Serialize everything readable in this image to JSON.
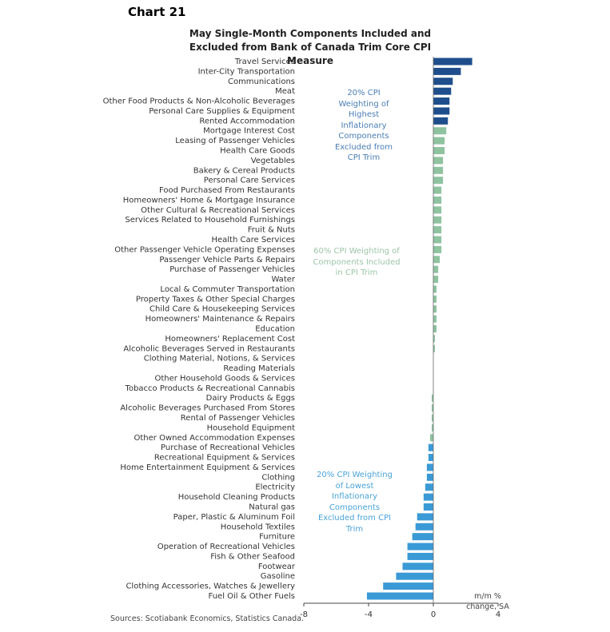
{
  "chart_data": {
    "type": "hbar",
    "label": "Chart 21",
    "title": "May Single-Month Components Included and Excluded from Bank of Canada Trim Core CPI Measure",
    "categories": [
      "Travel Services",
      "Inter-City Transportation",
      "Communications",
      "Meat",
      "Other Food Products & Non-Alcoholic Beverages",
      "Personal Care Supplies & Equipment",
      "Rented Accommodation",
      "Mortgage Interest Cost",
      "Leasing of Passenger Vehicles",
      "Health Care Goods",
      "Vegetables",
      "Bakery & Cereal Products",
      "Personal Care Services",
      "Food Purchased From Restaurants",
      "Homeowners' Home & Mortgage Insurance",
      "Other Cultural & Recreational Services",
      "Services Related to Household Furnishings",
      "Fruit & Nuts",
      "Health Care Services",
      "Other Passenger Vehicle Operating Expenses",
      "Passenger Vehicle Parts & Repairs",
      "Purchase of Passenger Vehicles",
      "Water",
      "Local & Commuter Transportation",
      "Property Taxes & Other Special Charges",
      "Child Care & Housekeeping Services",
      "Homeowners' Maintenance & Repairs",
      "Education",
      "Homeowners' Replacement Cost",
      "Alcoholic Beverages Served in Restaurants",
      "Clothing Material, Notions, & Services",
      "Reading Materials",
      "Other Household Goods & Services",
      "Tobacco Products & Recreational Cannabis",
      "Dairy Products & Eggs",
      "Alcoholic Beverages Purchased From Stores",
      "Rental of Passenger Vehicles",
      "Household Equipment",
      "Other Owned Accommodation Expenses",
      "Purchase of Recreational Vehicles",
      "Recreational Equipment & Services",
      "Home Entertainment Equipment & Services",
      "Clothing",
      "Electricity",
      "Household Cleaning Products",
      "Natural gas",
      "Paper, Plastic & Aluminum Foil",
      "Household Textiles",
      "Furniture",
      "Operation of Recreational Vehicles",
      "Fish & Other Seafood",
      "Footwear",
      "Gasoline",
      "Clothing Accessories, Watches & Jewellery",
      "Fuel Oil & Other Fuels"
    ],
    "series": [
      {
        "name": "20% CPI Weighting of Highest Inflationary Components Excluded from CPI Trim",
        "color": "#1f4e8c",
        "values": [
          2.4,
          1.7,
          1.2,
          1.1,
          1.0,
          1.0,
          0.9,
          null,
          null,
          null,
          null,
          null,
          null,
          null,
          null,
          null,
          null,
          null,
          null,
          null,
          null,
          null,
          null,
          null,
          null,
          null,
          null,
          null,
          null,
          null,
          null,
          null,
          null,
          null,
          null,
          null,
          null,
          null,
          null,
          null,
          null,
          null,
          null,
          null,
          null,
          null,
          null,
          null,
          null,
          null,
          null,
          null,
          null,
          null,
          null
        ]
      },
      {
        "name": "60% CPI Weighting of Components Included in CPI Trim",
        "color": "#8fc3a0",
        "values": [
          null,
          null,
          null,
          null,
          null,
          null,
          null,
          0.8,
          0.7,
          0.7,
          0.6,
          0.6,
          0.6,
          0.5,
          0.5,
          0.5,
          0.5,
          0.5,
          0.5,
          0.5,
          0.4,
          0.3,
          0.3,
          0.2,
          0.2,
          0.2,
          0.2,
          0.2,
          0.1,
          0.1,
          0.0,
          0.0,
          0.0,
          0.0,
          -0.1,
          -0.1,
          -0.1,
          -0.1,
          -0.2,
          null,
          null,
          null,
          null,
          null,
          null,
          null,
          null,
          null,
          null,
          null,
          null,
          null,
          null,
          null,
          null
        ]
      },
      {
        "name": "20% CPI Weighting of Lowest Inflationary Components Excluded from CPI Trim",
        "color": "#3a9ad6",
        "values": [
          null,
          null,
          null,
          null,
          null,
          null,
          null,
          null,
          null,
          null,
          null,
          null,
          null,
          null,
          null,
          null,
          null,
          null,
          null,
          null,
          null,
          null,
          null,
          null,
          null,
          null,
          null,
          null,
          null,
          null,
          null,
          null,
          null,
          null,
          null,
          null,
          null,
          null,
          null,
          -0.3,
          -0.3,
          -0.4,
          -0.4,
          -0.5,
          -0.6,
          -0.6,
          -1.0,
          -1.1,
          -1.3,
          -1.6,
          -1.6,
          -1.9,
          -2.3,
          -3.1,
          -4.1
        ]
      }
    ],
    "xlim": [
      -8,
      4
    ],
    "xticks": [
      -8,
      -4,
      0,
      4
    ],
    "x_label": "m/m % change, SA",
    "source": "Sources: Scotiabank Economics, Statistics Canada."
  }
}
